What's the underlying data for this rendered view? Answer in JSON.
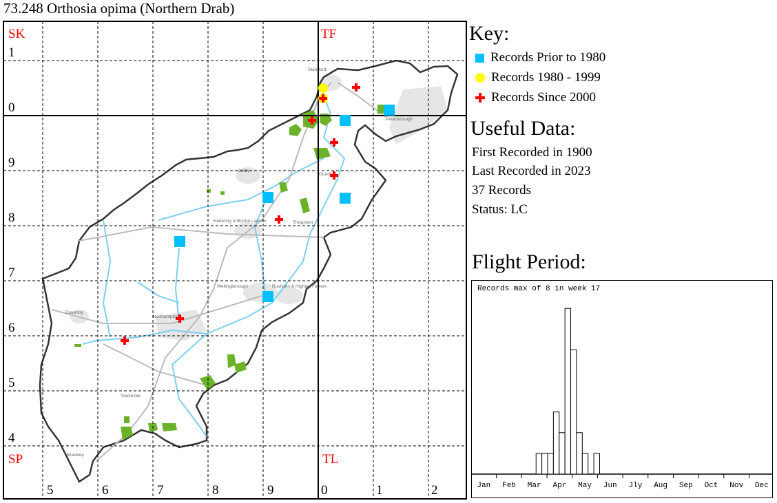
{
  "title": "73.248 Orthosia opima (Northern Drab)",
  "map": {
    "grid_squares": [
      {
        "label": "SK",
        "color": "#ff0000"
      },
      {
        "label": "TF",
        "color": "#ff0000"
      },
      {
        "label": "SP",
        "color": "#ff0000"
      },
      {
        "label": "TL",
        "color": "#ff0000"
      }
    ],
    "northings": [
      "1",
      "0",
      "9",
      "8",
      "7",
      "6",
      "5",
      "4"
    ],
    "eastings": [
      "5",
      "6",
      "7",
      "8",
      "9",
      "0",
      "1",
      "2"
    ],
    "towns": [
      "Stamford",
      "Peterborough",
      "Corby",
      "Oundle",
      "Kettering & Burton Latimer",
      "Thrapston",
      "Wellingborough",
      "Rushden & Higham Ferrers",
      "Daventry",
      "Northampton",
      "Towcester",
      "Brackley"
    ],
    "records_prior_1980": [
      [
        "TF1",
        "0"
      ],
      [
        "TF0",
        "9a"
      ],
      [
        "SP9",
        "8a"
      ],
      [
        "TL0",
        "8a"
      ],
      [
        "SP7",
        "7"
      ],
      [
        "SP9",
        "6"
      ]
    ],
    "records_1980_1999": [
      [
        "TF0",
        "0a"
      ],
      [
        "TF0",
        "0b"
      ]
    ],
    "records_since_2000": [
      [
        "TF0",
        "0c"
      ],
      [
        "TF0",
        "0d"
      ],
      [
        "SK9",
        "9"
      ],
      [
        "TL0",
        "9"
      ],
      [
        "TL0",
        "8b"
      ],
      [
        "SP9",
        "8b"
      ],
      [
        "SP7",
        "6"
      ],
      [
        "SP6",
        "5"
      ]
    ]
  },
  "key": {
    "heading": "Key:",
    "items": [
      {
        "label": "Records Prior to 1980",
        "symbol": "square",
        "color": "#00bfff"
      },
      {
        "label": "Records 1980 - 1999",
        "symbol": "circle",
        "color": "#ffff00"
      },
      {
        "label": "Records Since 2000",
        "symbol": "cross",
        "color": "#ff0000"
      }
    ]
  },
  "useful_data": {
    "heading": "Useful Data:",
    "first": "First Recorded in 1900",
    "last": "Last Recorded in 2023",
    "count": "37 Records",
    "status": "Status: LC"
  },
  "chart_data": {
    "type": "bar",
    "title": "Flight Period:",
    "annotation": "Records max of 8 in week 17",
    "x_unit": "week",
    "months": [
      "Jan",
      "Feb",
      "Mar",
      "Apr",
      "May",
      "Jun",
      "Jly",
      "Aug",
      "Sep",
      "Oct",
      "Nov",
      "Dec"
    ],
    "weeks": [
      12,
      13,
      14,
      15,
      16,
      17,
      18,
      19,
      20,
      21,
      22
    ],
    "values": [
      1,
      1,
      1,
      3,
      2,
      8,
      6,
      2,
      1,
      0,
      1
    ],
    "ylim": [
      0,
      8
    ]
  }
}
